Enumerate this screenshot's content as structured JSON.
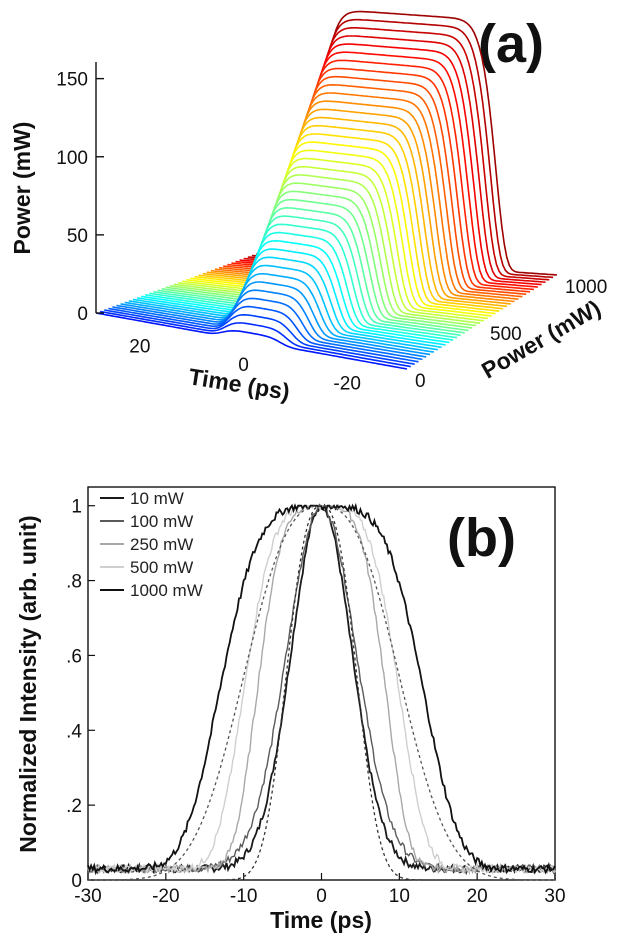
{
  "chart_data": [
    {
      "panel": "(a)",
      "type": "line",
      "subtype": "3d-waterfall",
      "xlabel": "Time (ps)",
      "ylabel": "Power (mW)",
      "depth_label": "Power (mW)",
      "x_ticks": [
        "20",
        "0",
        "-20"
      ],
      "y_ticks": [
        "0",
        "50",
        "100",
        "150"
      ],
      "depth_ticks": [
        "0",
        "500",
        "1000"
      ],
      "xlim": [
        30,
        -30
      ],
      "ylim": [
        0,
        160
      ],
      "depth_range": [
        0,
        1000
      ],
      "curve_count": 40,
      "peak_power_range": [
        5,
        160
      ],
      "colormap": "jet"
    },
    {
      "panel": "(b)",
      "type": "line",
      "xlabel": "Time (ps)",
      "ylabel": "Normalized Intensity (arb. unit)",
      "xlim": [
        -30,
        30
      ],
      "ylim": [
        0,
        1.05
      ],
      "x_ticks": [
        "-30",
        "-20",
        "-10",
        "0",
        "10",
        "20",
        "30"
      ],
      "y_ticks": [
        "0",
        ".2",
        ".4",
        ".6",
        ".8",
        "1"
      ],
      "legend_position": "top-left",
      "grid": false,
      "series": [
        {
          "name": "10 mW",
          "color": "#1a1a1a",
          "half_width_ps": 10.5,
          "shape": "gaussian"
        },
        {
          "name": "100 mW",
          "color": "#5a5a5a",
          "half_width_ps": 12.0,
          "shape": "gaussian"
        },
        {
          "name": "250 mW",
          "color": "#a8a8a8",
          "half_width_ps": 14.5,
          "shape": "flat"
        },
        {
          "name": "500 mW",
          "color": "#cfcfcf",
          "half_width_ps": 17.5,
          "shape": "flat"
        },
        {
          "name": "1000 mW",
          "color": "#111111",
          "half_width_ps": 23.0,
          "shape": "flat"
        }
      ],
      "fits": [
        {
          "color": "#333333",
          "half_width_ps": 10.0,
          "style": "dotted"
        },
        {
          "color": "#555555",
          "half_width_ps": 22.0,
          "style": "dotted"
        }
      ]
    }
  ]
}
